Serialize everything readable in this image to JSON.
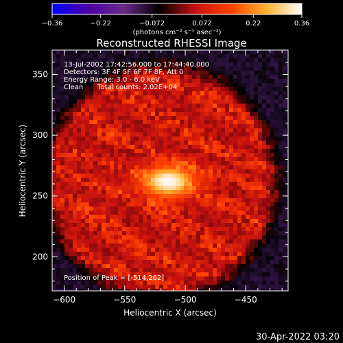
{
  "chart_data": {
    "type": "heatmap",
    "title": "Reconstructed RHESSI Image",
    "xlabel": "Heliocentric X (arcsec)",
    "ylabel": "Heliocentric Y (arcsec)",
    "xlim": [
      -610,
      -415
    ],
    "ylim": [
      172,
      370
    ],
    "x_ticks": [
      -600,
      -550,
      -500,
      -450
    ],
    "y_ticks": [
      200,
      250,
      300,
      350
    ],
    "x_tick_labels": [
      "−600",
      "−550",
      "−500",
      "−450"
    ],
    "y_tick_labels": [
      "200",
      "250",
      "300",
      "350"
    ],
    "colorbar": {
      "min": -0.36,
      "max": 0.36,
      "ticks": [
        -0.36,
        -0.22,
        -0.072,
        0.072,
        0.22,
        0.36
      ],
      "tick_labels": [
        "−0.36",
        "−0.22",
        "−0.072",
        "0.072",
        "0.22",
        "0.36"
      ],
      "unit_label": "(photons cm⁻² s⁻¹ asec⁻²)",
      "colormap": [
        "#0000ff",
        "#4b00a6",
        "#6a2a8c",
        "#000000",
        "#c41010",
        "#ff4000",
        "#ffb030",
        "#ffffff"
      ]
    },
    "annotations": [
      "13-Jul-2002 17:42:56.000 to 17:44:40.000",
      "Detectors: 3F 4F 5F 6F 7F 8F, Att 0",
      "Energy Range: 3.0 - 6.0 keV",
      "Clean",
      "Total counts: 2.02E+04"
    ],
    "peak_label": "Position of Peak = [-514,262]",
    "peak": {
      "x": -514,
      "y": 262,
      "value": 0.36
    },
    "source_sigma_arcsec": 9,
    "disk": {
      "center_x": -520,
      "center_y": 262,
      "radius_arcsec": 95
    },
    "background_level": -0.08
  },
  "footer_timestamp": "30-Apr-2022 03:20"
}
